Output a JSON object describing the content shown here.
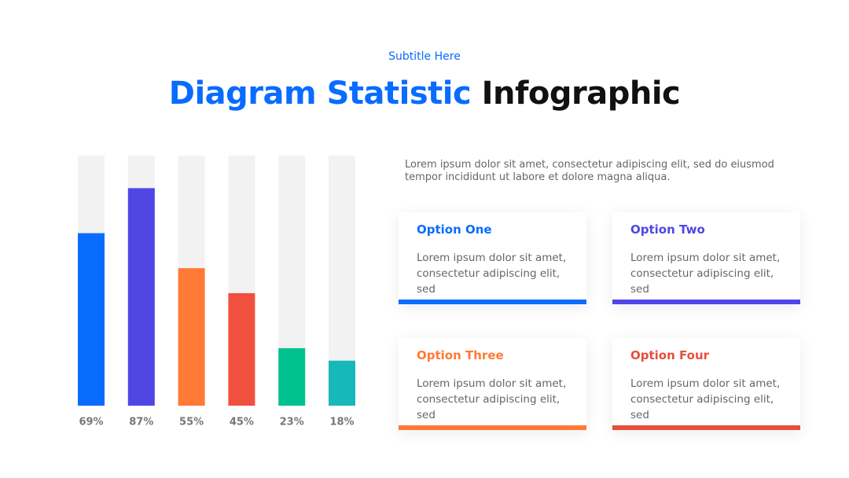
{
  "header": {
    "subtitle": "Subtitle Here",
    "title_highlight": "Diagram Statistic",
    "title_rest": "Infographic"
  },
  "chart_data": {
    "type": "bar",
    "values": [
      69,
      87,
      55,
      45,
      23,
      18
    ],
    "value_labels": [
      "69%",
      "87%",
      "55%",
      "45%",
      "23%",
      "18%"
    ],
    "colors": [
      "#0a6cff",
      "#5046e4",
      "#ff7a35",
      "#f0503e",
      "#00c28f",
      "#17b8b8"
    ],
    "ylim": [
      0,
      100
    ]
  },
  "description": "Lorem ipsum dolor sit amet, consectetur adipiscing elit, sed do eiusmod tempor incididunt ut labore et dolore magna aliqua.",
  "options": [
    {
      "title": "Option One",
      "text": "Lorem ipsum dolor sit amet, consectetur adipiscing elit, sed",
      "color": "#0a6cff"
    },
    {
      "title": "Option Two",
      "text": "Lorem ipsum dolor sit amet, consectetur adipiscing elit, sed",
      "color": "#5046e4"
    },
    {
      "title": "Option Three",
      "text": "Lorem ipsum dolor sit amet, consectetur adipiscing elit, sed",
      "color": "#ff7a35"
    },
    {
      "title": "Option Four",
      "text": "Lorem ipsum dolor sit amet, consectetur adipiscing elit, sed",
      "color": "#e84e3e"
    }
  ]
}
